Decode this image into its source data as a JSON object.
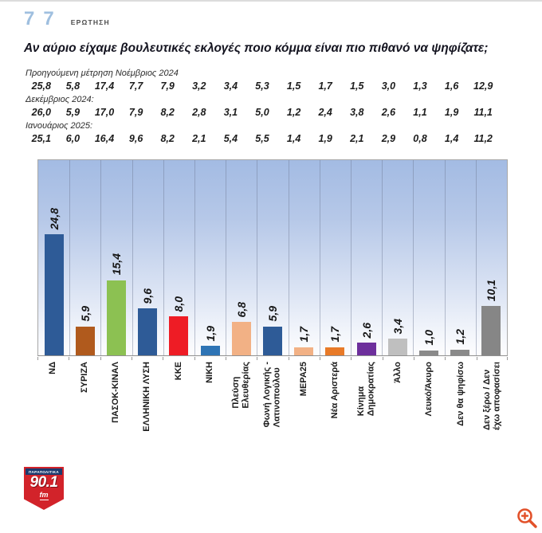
{
  "header": {
    "question_number": "77",
    "question_label": "ΕΡΩΤΗΣΗ",
    "title": "Αν αύριο είχαμε βουλευτικές εκλογές ποιο κόμμα είναι πιο πιθανό να ψηφίζατε;"
  },
  "previous_measurements": [
    {
      "label": "Προηγούμενη μέτρηση Νοέμβριος 2024",
      "values": [
        "25,8",
        "5,8",
        "17,4",
        "7,7",
        "7,9",
        "3,2",
        "3,4",
        "5,3",
        "1,5",
        "1,7",
        "1,5",
        "3,0",
        "1,3",
        "1,6",
        "12,9"
      ]
    },
    {
      "label": "Δεκέμβριος 2024:",
      "values": [
        "26,0",
        "5,9",
        "17,0",
        "7,9",
        "8,2",
        "2,8",
        "3,1",
        "5,0",
        "1,2",
        "2,4",
        "3,8",
        "2,6",
        "1,1",
        "1,9",
        "11,1"
      ]
    },
    {
      "label": "Ιανουάριος 2025:",
      "values": [
        "25,1",
        "6,0",
        "16,4",
        "9,6",
        "8,2",
        "2,1",
        "5,4",
        "5,5",
        "1,4",
        "1,9",
        "2,1",
        "2,9",
        "0,8",
        "1,4",
        "11,2"
      ]
    }
  ],
  "chart_data": {
    "type": "bar",
    "title": "Αν αύριο είχαμε βουλευτικές εκλογές ποιο κόμμα είναι πιο πιθανό να ψηφίζατε;",
    "categories": [
      "ΝΔ",
      "ΣΥΡΙΖΑ",
      "ΠΑΣΟΚ-ΚΙΝΑΛ",
      "ΕΛΛΗΝΙΚΗ ΛΥΣΗ",
      "ΚΚΕ",
      "ΝΙΚΗ",
      "Πλεύση\nΕλευθερίας",
      "Φωνή Λογικής -\nΛατινοπούλου",
      "ΜΕΡΑ25",
      "Νέα Αριστερά",
      "Κίνημα\nΔημοκρατίας",
      "Άλλο",
      "Λευκό/Άκυρο",
      "Δεν θα ψηφίσω",
      "Δεν ξέρω / Δεν\nέχω αποφασίσει"
    ],
    "values": [
      24.8,
      5.9,
      15.4,
      9.6,
      8.0,
      1.9,
      6.8,
      5.9,
      1.7,
      1.7,
      2.6,
      3.4,
      1.0,
      1.2,
      10.1
    ],
    "value_labels": [
      "24,8",
      "5,9",
      "15,4",
      "9,6",
      "8,0",
      "1,9",
      "6,8",
      "5,9",
      "1,7",
      "1,7",
      "2,6",
      "3,4",
      "1,0",
      "1,2",
      "10,1"
    ],
    "bar_colors": [
      "#2e5b97",
      "#b05a1d",
      "#8cc152",
      "#2e5b97",
      "#ee1c25",
      "#2e74b5",
      "#f2b185",
      "#2e5b97",
      "#f2b185",
      "#e87a28",
      "#6d2f9c",
      "#bfbfbf",
      "#8a8a8a",
      "#8a8a8a",
      "#868686"
    ],
    "xlabel": "",
    "ylabel": "",
    "ylim": [
      0,
      40
    ],
    "grid": "vertical-only",
    "legend_position": "none",
    "plot_background": "blue gradient fading to white"
  },
  "footer": {
    "logo": {
      "brand": "ΠΑΡΑΠΟΛΙΤΙΚΑ",
      "frequency": "90.1",
      "band": "fm"
    }
  },
  "controls": {
    "zoom_in_icon_color": "#e2512a"
  }
}
